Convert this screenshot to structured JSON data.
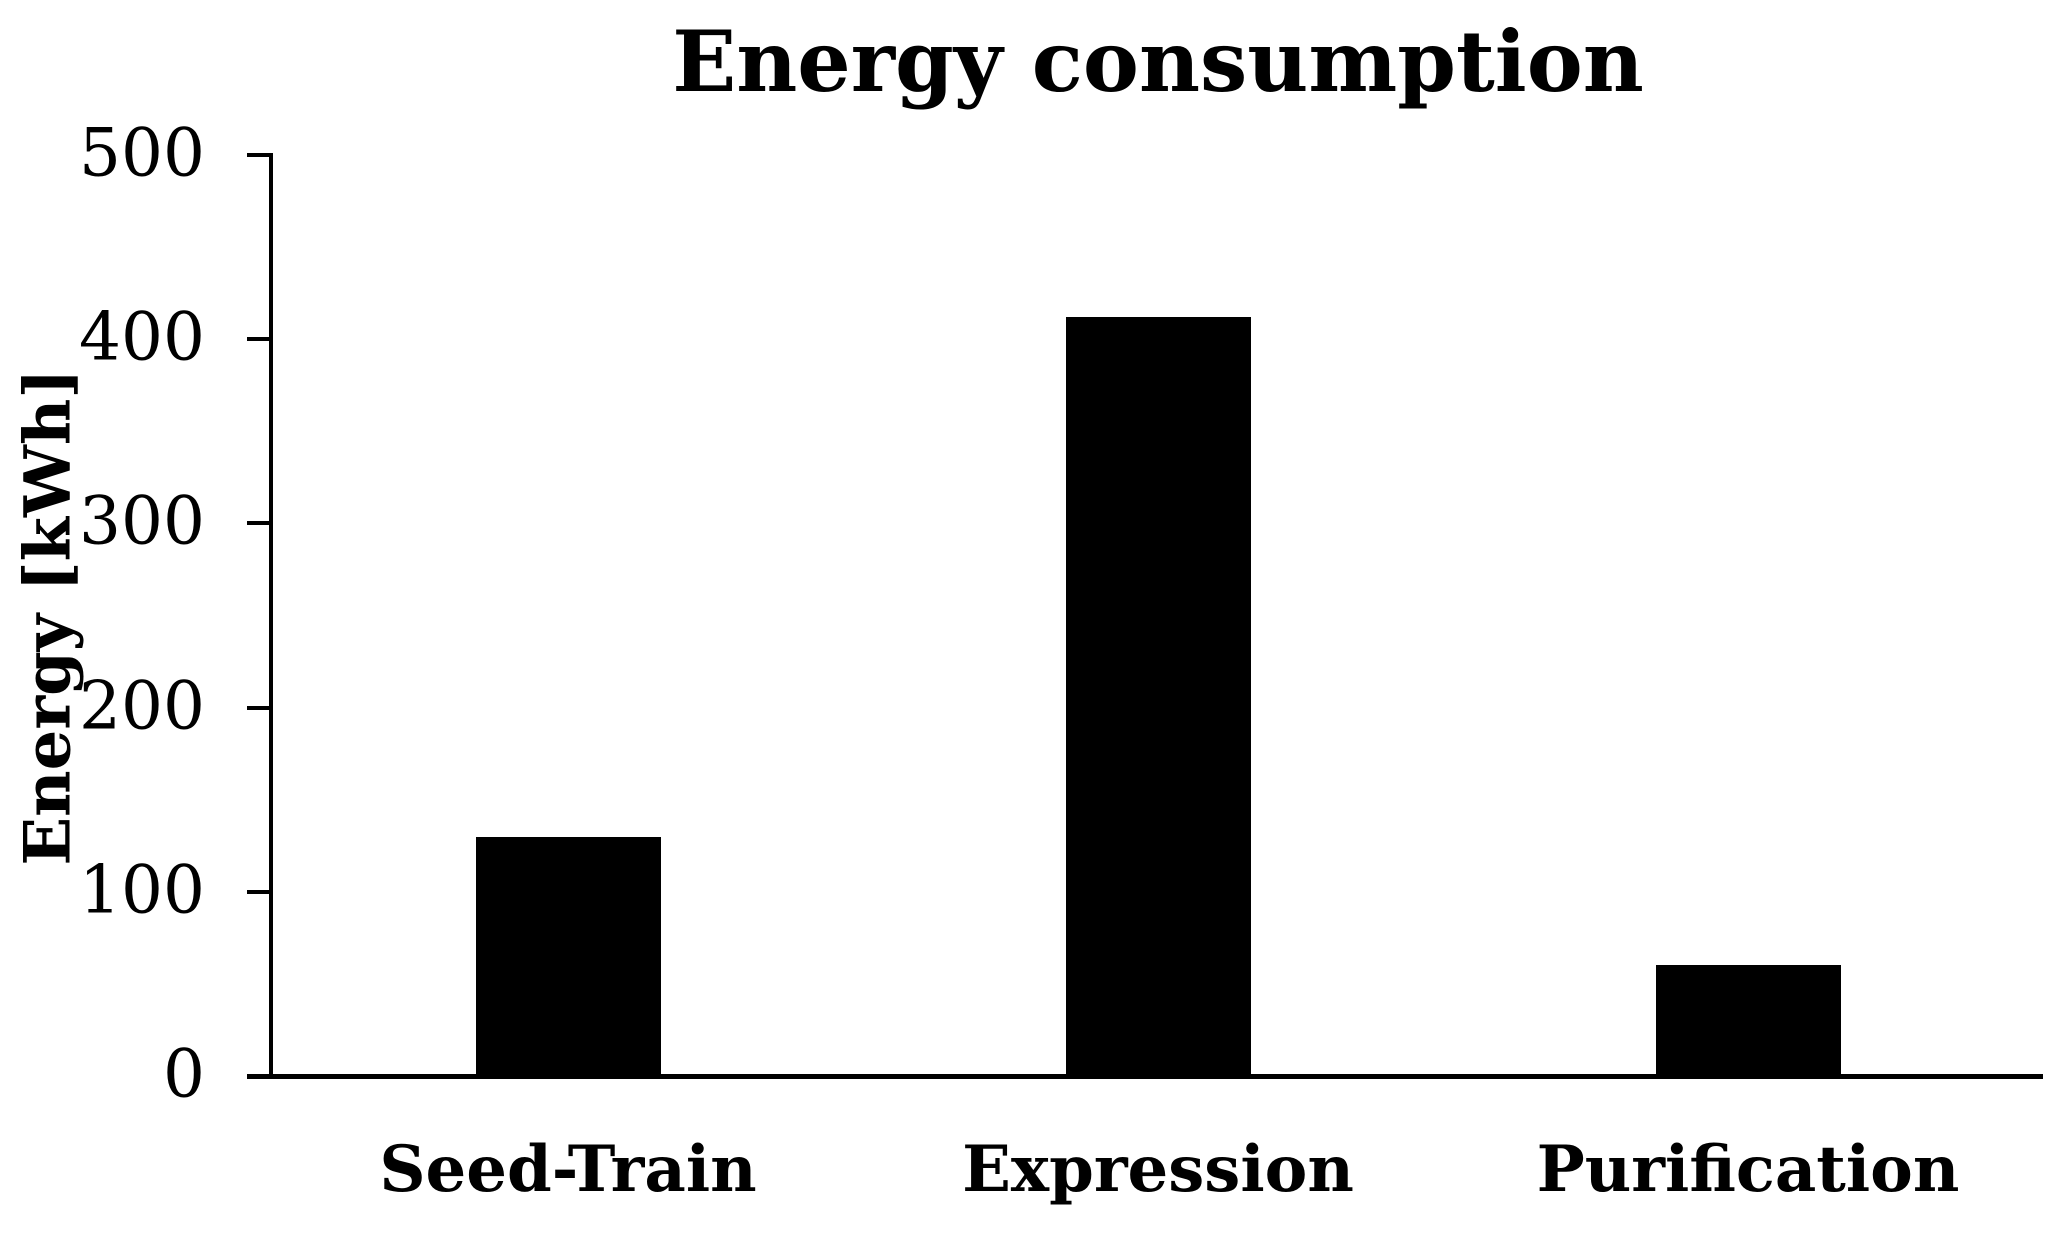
{
  "figure": {
    "background": "#ffffff",
    "text_color": "#000000"
  },
  "chart_data": {
    "type": "bar",
    "title": "Energy consumption",
    "ylabel": "Energy [kWh]",
    "xlabel": "",
    "categories": [
      "Seed-Train",
      "Expression",
      "Purification"
    ],
    "values": [
      130,
      412,
      60
    ],
    "ylim": [
      0,
      500
    ],
    "yticks": [
      0,
      100,
      200,
      300,
      400,
      500
    ],
    "grid": false,
    "legend": false,
    "bar_color": "#000000",
    "axis_color": "#000000"
  }
}
